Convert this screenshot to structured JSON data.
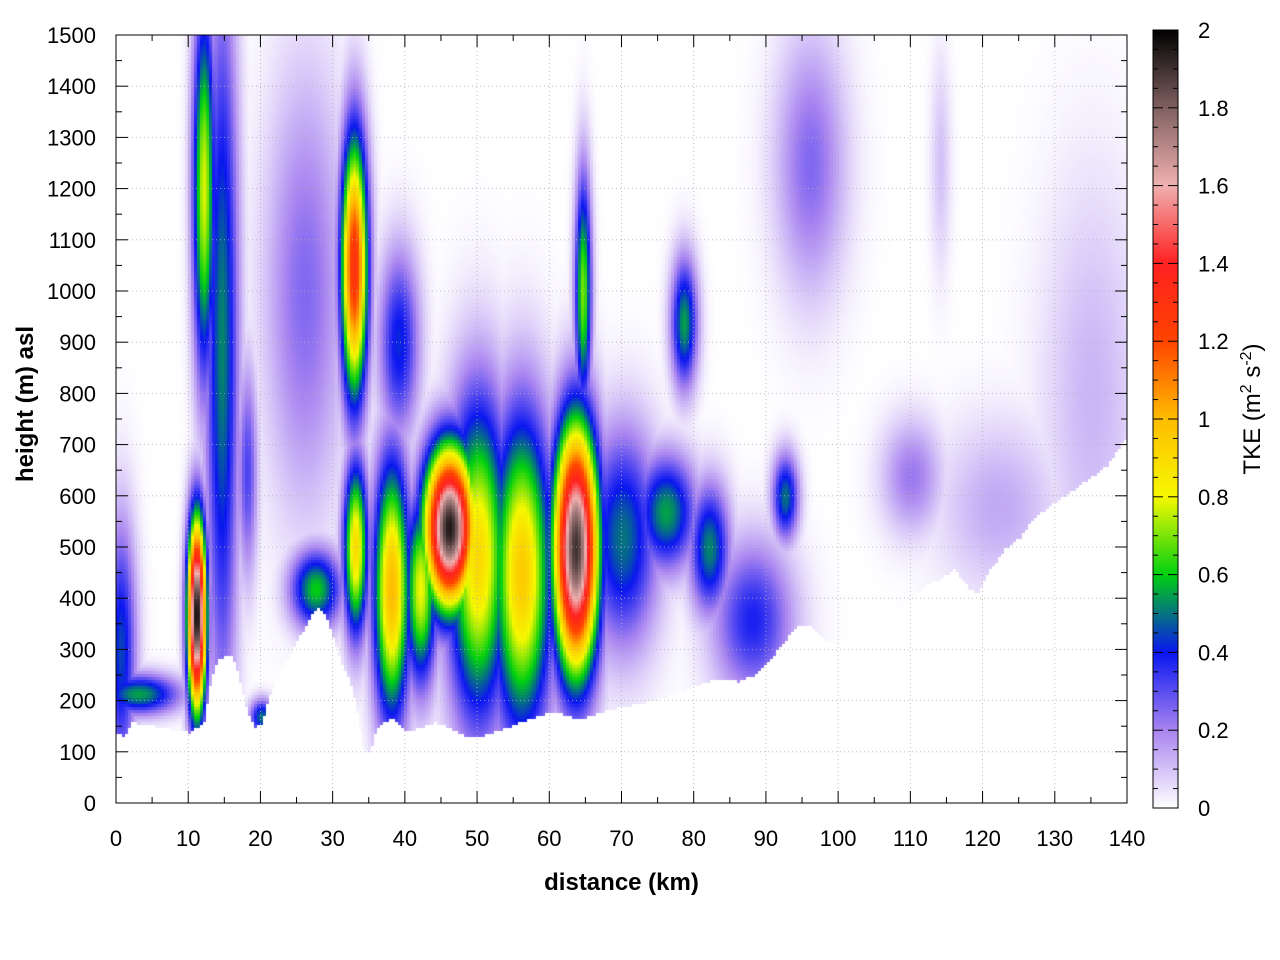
{
  "chart_data": {
    "type": "heatmap",
    "title": "",
    "xlabel": "distance (km)",
    "ylabel": "height (m) asl",
    "xlim": [
      0,
      140
    ],
    "ylim": [
      0,
      1500
    ],
    "x_ticks": [
      0,
      10,
      20,
      30,
      40,
      50,
      60,
      70,
      80,
      90,
      100,
      110,
      120,
      130,
      140
    ],
    "y_ticks": [
      0,
      100,
      200,
      300,
      400,
      500,
      600,
      700,
      800,
      900,
      1000,
      1100,
      1200,
      1300,
      1400,
      1500
    ],
    "grid": true,
    "colorbar": {
      "label": "TKE (m",
      "label_sup1": "2",
      "label_mid": " s",
      "label_sup2": "-2",
      "label_end": ")",
      "range": [
        0,
        2
      ],
      "ticks": [
        "0",
        "0.2",
        "0.4",
        "0.6",
        "0.8",
        "1",
        "1.2",
        "1.4",
        "1.6",
        "1.8",
        "2"
      ],
      "stops": [
        {
          "value": 0.0,
          "color": "#ffffff"
        },
        {
          "value": 0.2,
          "color": "#a884f0"
        },
        {
          "value": 0.4,
          "color": "#0a16f0"
        },
        {
          "value": 0.6,
          "color": "#00d010"
        },
        {
          "value": 0.8,
          "color": "#f6f800"
        },
        {
          "value": 1.0,
          "color": "#ffbc00"
        },
        {
          "value": 1.2,
          "color": "#ff4400"
        },
        {
          "value": 1.4,
          "color": "#ff2020"
        },
        {
          "value": 1.6,
          "color": "#f0b0b0"
        },
        {
          "value": 1.8,
          "color": "#806060"
        },
        {
          "value": 2.0,
          "color": "#000000"
        }
      ]
    },
    "terrain": [
      [
        0,
        140
      ],
      [
        1,
        130
      ],
      [
        2,
        160
      ],
      [
        4,
        155
      ],
      [
        6,
        150
      ],
      [
        8,
        145
      ],
      [
        10,
        140
      ],
      [
        11,
        150
      ],
      [
        12,
        155
      ],
      [
        13,
        240
      ],
      [
        14,
        285
      ],
      [
        16,
        290
      ],
      [
        17,
        240
      ],
      [
        18,
        180
      ],
      [
        19,
        150
      ],
      [
        20,
        155
      ],
      [
        21,
        210
      ],
      [
        23,
        270
      ],
      [
        25,
        320
      ],
      [
        27,
        370
      ],
      [
        28,
        385
      ],
      [
        29,
        365
      ],
      [
        30,
        320
      ],
      [
        31,
        280
      ],
      [
        32,
        250
      ],
      [
        33,
        200
      ],
      [
        34,
        110
      ],
      [
        35,
        100
      ],
      [
        36,
        150
      ],
      [
        38,
        170
      ],
      [
        40,
        140
      ],
      [
        42,
        150
      ],
      [
        44,
        160
      ],
      [
        46,
        150
      ],
      [
        48,
        135
      ],
      [
        50,
        130
      ],
      [
        52,
        140
      ],
      [
        54,
        150
      ],
      [
        56,
        160
      ],
      [
        58,
        170
      ],
      [
        60,
        180
      ],
      [
        62,
        175
      ],
      [
        64,
        165
      ],
      [
        66,
        175
      ],
      [
        68,
        185
      ],
      [
        70,
        190
      ],
      [
        72,
        195
      ],
      [
        75,
        205
      ],
      [
        78,
        220
      ],
      [
        80,
        230
      ],
      [
        82,
        240
      ],
      [
        84,
        245
      ],
      [
        86,
        240
      ],
      [
        88,
        250
      ],
      [
        90,
        275
      ],
      [
        92,
        310
      ],
      [
        94,
        345
      ],
      [
        96,
        350
      ],
      [
        98,
        320
      ],
      [
        100,
        310
      ],
      [
        102,
        330
      ],
      [
        105,
        360
      ],
      [
        108,
        380
      ],
      [
        110,
        400
      ],
      [
        112,
        430
      ],
      [
        114,
        440
      ],
      [
        116,
        460
      ],
      [
        118,
        420
      ],
      [
        119,
        410
      ],
      [
        121,
        460
      ],
      [
        123,
        500
      ],
      [
        125,
        520
      ],
      [
        127,
        560
      ],
      [
        129,
        580
      ],
      [
        131,
        600
      ],
      [
        133,
        620
      ],
      [
        135,
        640
      ],
      [
        137,
        660
      ],
      [
        139,
        700
      ],
      [
        140,
        720
      ]
    ],
    "tke_features": [
      {
        "x": 0.5,
        "y": 300,
        "sx": 1.5,
        "sy": 180,
        "tke": 0.45
      },
      {
        "x": 3,
        "y": 215,
        "sx": 4,
        "sy": 28,
        "tke": 0.55
      },
      {
        "x": 11,
        "y": 370,
        "sx": 0.9,
        "sy": 130,
        "tke": 2.0
      },
      {
        "x": 12,
        "y": 1200,
        "sx": 1.1,
        "sy": 260,
        "tke": 0.78
      },
      {
        "x": 14.5,
        "y": 900,
        "sx": 1.6,
        "sy": 500,
        "tke": 0.52
      },
      {
        "x": 18,
        "y": 650,
        "sx": 1.0,
        "sy": 150,
        "tke": 0.32
      },
      {
        "x": 20,
        "y": 170,
        "sx": 1.2,
        "sy": 25,
        "tke": 0.5
      },
      {
        "x": 26,
        "y": 1000,
        "sx": 4,
        "sy": 300,
        "tke": 0.25
      },
      {
        "x": 27.5,
        "y": 420,
        "sx": 2.5,
        "sy": 55,
        "tke": 0.6
      },
      {
        "x": 32.8,
        "y": 1050,
        "sx": 1.3,
        "sy": 180,
        "tke": 1.3
      },
      {
        "x": 33,
        "y": 500,
        "sx": 1.2,
        "sy": 120,
        "tke": 0.9
      },
      {
        "x": 39,
        "y": 900,
        "sx": 2,
        "sy": 130,
        "tke": 0.42
      },
      {
        "x": 38,
        "y": 420,
        "sx": 1.8,
        "sy": 180,
        "tke": 1.0
      },
      {
        "x": 42,
        "y": 420,
        "sx": 1.6,
        "sy": 130,
        "tke": 0.8
      },
      {
        "x": 46,
        "y": 540,
        "sx": 2.5,
        "sy": 110,
        "tke": 1.95
      },
      {
        "x": 50,
        "y": 480,
        "sx": 3.0,
        "sy": 220,
        "tke": 0.9
      },
      {
        "x": 56,
        "y": 450,
        "sx": 3.0,
        "sy": 220,
        "tke": 0.95
      },
      {
        "x": 63.5,
        "y": 500,
        "sx": 2.2,
        "sy": 170,
        "tke": 1.9
      },
      {
        "x": 64.5,
        "y": 1000,
        "sx": 0.8,
        "sy": 160,
        "tke": 0.7
      },
      {
        "x": 70,
        "y": 520,
        "sx": 3.5,
        "sy": 150,
        "tke": 0.5
      },
      {
        "x": 78.5,
        "y": 940,
        "sx": 1.3,
        "sy": 90,
        "tke": 0.55
      },
      {
        "x": 76,
        "y": 570,
        "sx": 3.0,
        "sy": 80,
        "tke": 0.55
      },
      {
        "x": 82,
        "y": 500,
        "sx": 2.0,
        "sy": 90,
        "tke": 0.52
      },
      {
        "x": 88,
        "y": 360,
        "sx": 4.0,
        "sy": 110,
        "tke": 0.38
      },
      {
        "x": 92.5,
        "y": 600,
        "sx": 1.3,
        "sy": 60,
        "tke": 0.5
      },
      {
        "x": 96,
        "y": 1250,
        "sx": 3.5,
        "sy": 180,
        "tke": 0.25
      },
      {
        "x": 110,
        "y": 640,
        "sx": 3,
        "sy": 80,
        "tke": 0.22
      },
      {
        "x": 114,
        "y": 1250,
        "sx": 1,
        "sy": 150,
        "tke": 0.1
      },
      {
        "x": 122,
        "y": 580,
        "sx": 6,
        "sy": 120,
        "tke": 0.14
      },
      {
        "x": 135,
        "y": 800,
        "sx": 5,
        "sy": 300,
        "tke": 0.12
      }
    ]
  }
}
